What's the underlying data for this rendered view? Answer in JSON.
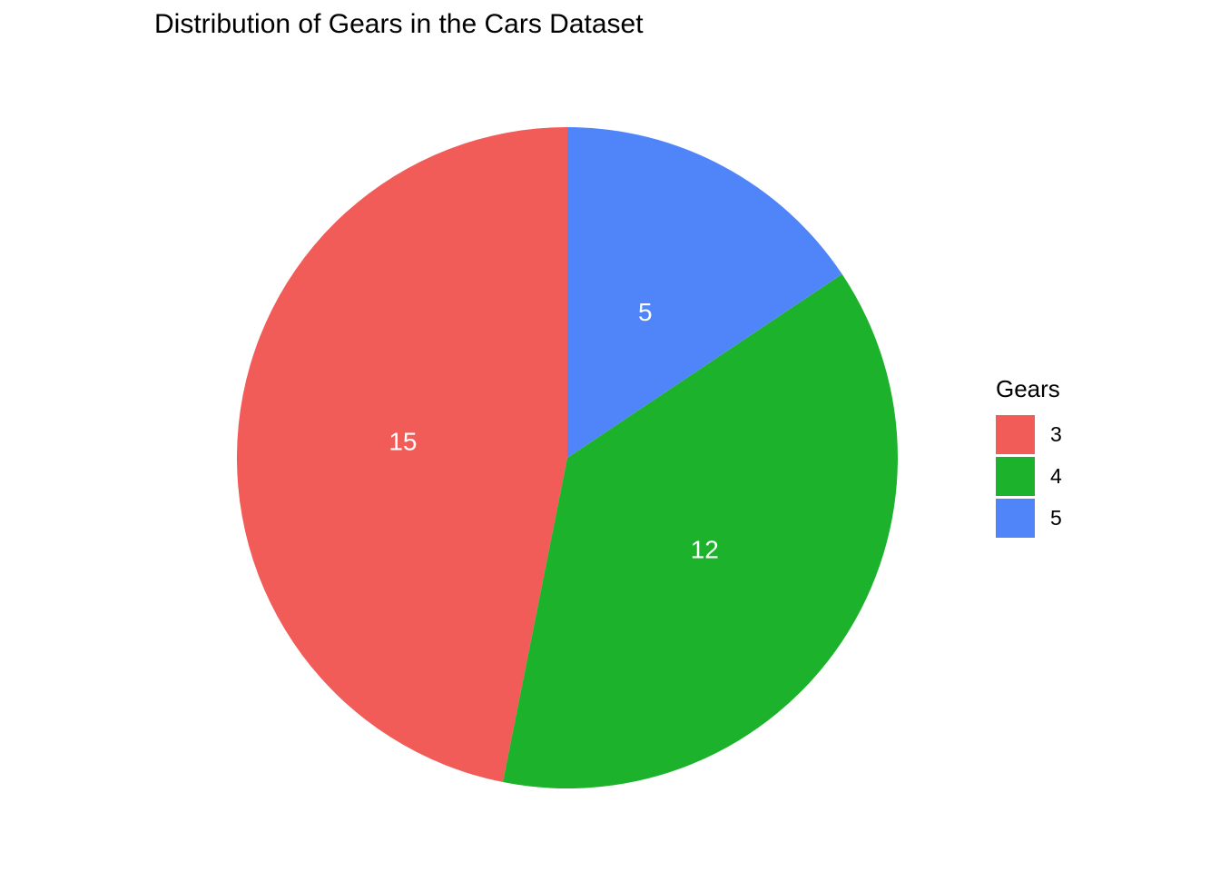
{
  "page": {
    "background": "#FFFFFF"
  },
  "chart_data": {
    "type": "pie",
    "title": "Distribution of Gears in the Cars Dataset",
    "legend_title": "Gears",
    "legend_position": "right",
    "categories": [
      "3",
      "4",
      "5"
    ],
    "values": [
      15,
      12,
      5
    ],
    "total": 32,
    "colors": [
      "#F15B58",
      "#1CB22B",
      "#5085FA"
    ],
    "slice_labels": [
      "15",
      "12",
      "5"
    ],
    "slice_label_color": "#FFFFFF",
    "title_color": "#000000",
    "start_angle": "12-oclock",
    "direction": "counterclockwise"
  }
}
